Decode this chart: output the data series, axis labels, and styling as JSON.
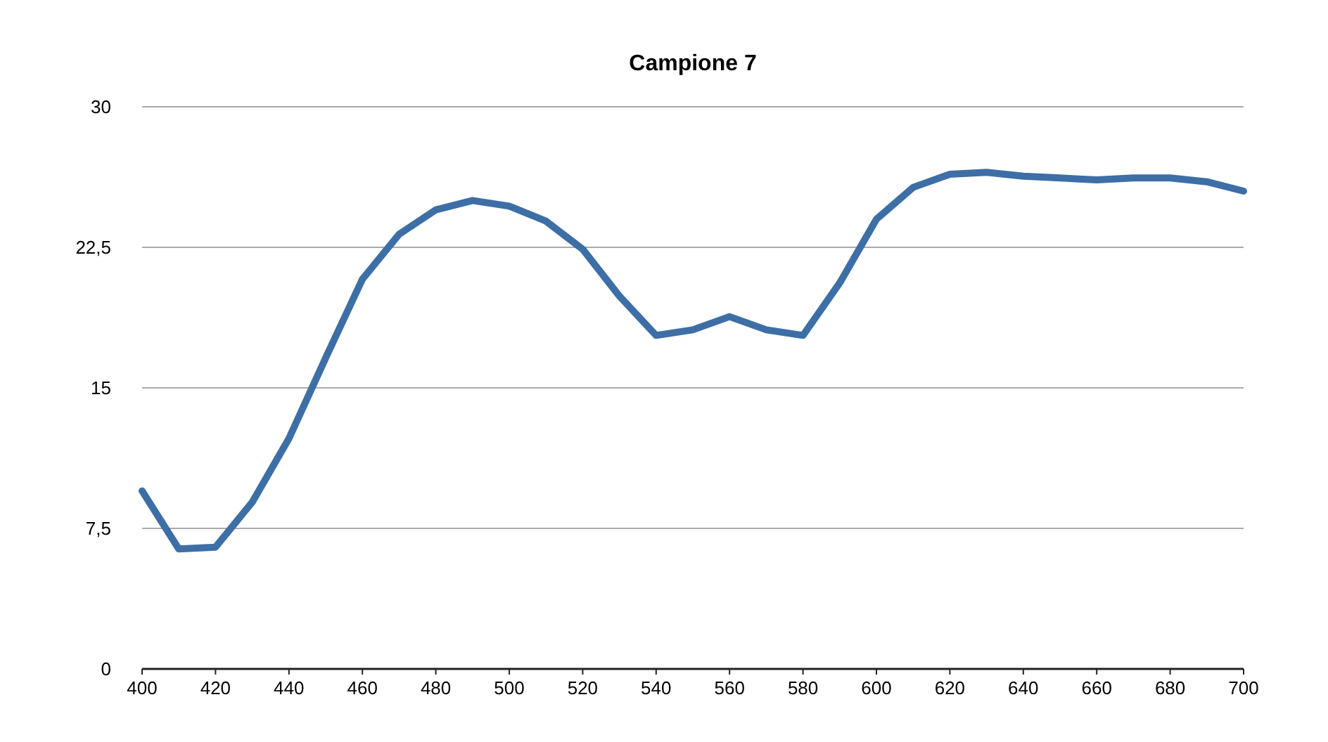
{
  "chart_data": {
    "type": "line",
    "title": "Campione 7",
    "x": [
      400,
      410,
      420,
      430,
      440,
      450,
      460,
      470,
      480,
      490,
      500,
      510,
      520,
      530,
      540,
      550,
      560,
      570,
      580,
      590,
      600,
      610,
      620,
      630,
      640,
      650,
      660,
      670,
      680,
      690,
      700
    ],
    "series": [
      {
        "color": "#3d6fa6",
        "values": [
          9.5,
          6.4,
          6.5,
          8.9,
          12.3,
          16.6,
          20.8,
          23.2,
          24.5,
          25.0,
          24.7,
          23.9,
          22.4,
          19.9,
          17.8,
          18.1,
          18.8,
          18.1,
          17.8,
          20.6,
          24.0,
          25.7,
          26.4,
          26.5,
          26.3,
          26.2,
          26.1,
          26.2,
          26.2,
          26.0,
          25.5
        ]
      }
    ],
    "xlim": [
      400,
      700
    ],
    "xticks": [
      400,
      420,
      440,
      460,
      480,
      500,
      520,
      540,
      560,
      580,
      600,
      620,
      640,
      660,
      680,
      700
    ],
    "ylim": [
      0,
      30
    ],
    "yticks": [
      0,
      {
        "value": 7.5,
        "label": "7,5"
      },
      15,
      {
        "value": 22.5,
        "label": "22,5"
      },
      30
    ],
    "grid": "y",
    "marker": "none",
    "line_style": "solid"
  }
}
